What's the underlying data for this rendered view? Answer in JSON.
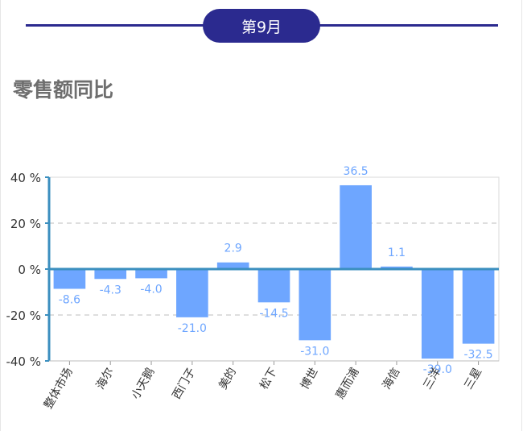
{
  "header": {
    "month_label": "第9月",
    "section_title": "零售额同比"
  },
  "colors": {
    "accent": "#2b2a8f",
    "bar": "#6ea6ff",
    "axis": "#3b8fbf",
    "label": "#6ea6ff"
  },
  "chart_data": {
    "type": "bar",
    "title": "零售额同比",
    "categories": [
      "整体市场",
      "海尔",
      "小天鹅",
      "西门子",
      "美的",
      "松下",
      "博世",
      "惠而浦",
      "海信",
      "三洋",
      "三星"
    ],
    "values": [
      -8.6,
      -4.3,
      -4.0,
      -21.0,
      2.9,
      -14.5,
      -31.0,
      36.5,
      1.1,
      -39.0,
      -32.5
    ],
    "value_labels": [
      "-8.6",
      "-4.3",
      "-4.0",
      "-21.0",
      "2.9",
      "-14.5",
      "-31.0",
      "36.5",
      "1.1",
      "-39.0",
      "-32.5"
    ],
    "y_ticks": [
      40,
      20,
      0,
      -20,
      -40
    ],
    "y_tick_labels": [
      "40 %",
      "20 %",
      "0 %",
      "-20 %",
      "-40 %"
    ],
    "ylim": [
      -40,
      40
    ],
    "grid": true,
    "xlabel": "",
    "ylabel": ""
  }
}
